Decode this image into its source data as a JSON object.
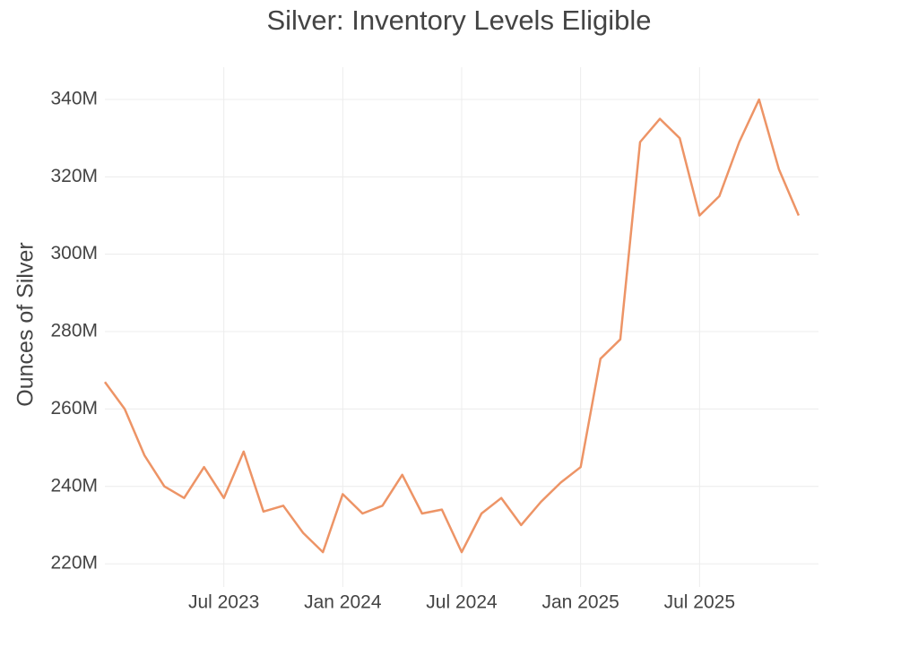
{
  "chart_data": {
    "type": "line",
    "title": "Silver: Inventory Levels Eligible",
    "y_label": "Ounces of Silver",
    "x": [
      "2023-01",
      "2023-02",
      "2023-03",
      "2023-04",
      "2023-05",
      "2023-06",
      "2023-07",
      "2023-08",
      "2023-09",
      "2023-10",
      "2023-11",
      "2023-12",
      "2024-01",
      "2024-02",
      "2024-03",
      "2024-04",
      "2024-05",
      "2024-06",
      "2024-07",
      "2024-08",
      "2024-09",
      "2024-10",
      "2024-11",
      "2024-12",
      "2025-01",
      "2025-02",
      "2025-03",
      "2025-04",
      "2025-05",
      "2025-06",
      "2025-07",
      "2025-08",
      "2025-09",
      "2025-10",
      "2025-11",
      "2025-12"
    ],
    "series": [
      {
        "name": "Inventory Levels Eligible",
        "color": "#ed9466",
        "values": [
          267000000,
          260000000,
          248000000,
          240000000,
          237000000,
          245000000,
          237000000,
          249000000,
          233500000,
          235000000,
          228000000,
          223000000,
          238000000,
          233000000,
          235000000,
          243000000,
          233000000,
          234000000,
          223000000,
          233000000,
          237000000,
          230000000,
          236000000,
          241000000,
          245000000,
          273000000,
          278000000,
          329000000,
          335000000,
          330000000,
          310000000,
          315000000,
          329000000,
          340000000,
          322000000,
          310000000
        ]
      }
    ],
    "xlim": [
      "2023-01",
      "2026-01"
    ],
    "xticks": [
      {
        "value": "2023-07",
        "label": "Jul 2023"
      },
      {
        "value": "2024-01",
        "label": "Jan 2024"
      },
      {
        "value": "2024-07",
        "label": "Jul 2024"
      },
      {
        "value": "2025-01",
        "label": "Jan 2025"
      },
      {
        "value": "2025-07",
        "label": "Jul 2025"
      }
    ],
    "ylim": [
      214000000,
      343700000
    ],
    "yticks": [
      {
        "value": 220000000,
        "label": "220M"
      },
      {
        "value": 240000000,
        "label": "240M"
      },
      {
        "value": 260000000,
        "label": "260M"
      },
      {
        "value": 280000000,
        "label": "280M"
      },
      {
        "value": 300000000,
        "label": "300M"
      },
      {
        "value": 320000000,
        "label": "320M"
      },
      {
        "value": 340000000,
        "label": "340M"
      }
    ],
    "grid": true
  }
}
